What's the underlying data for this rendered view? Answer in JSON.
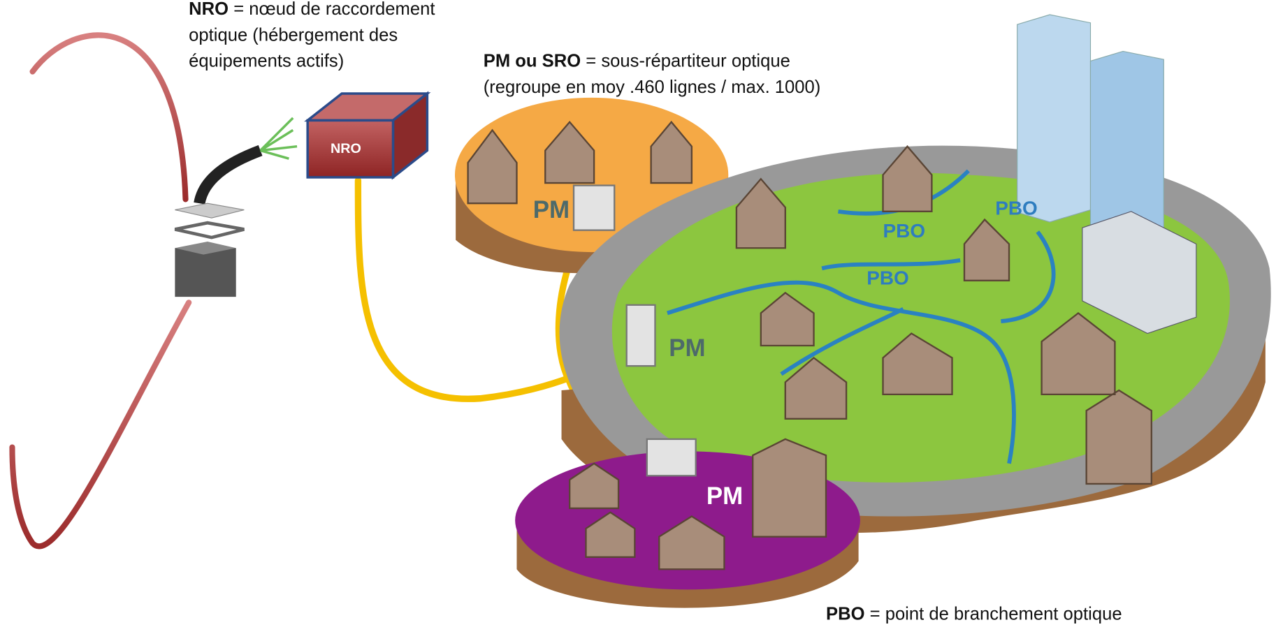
{
  "legend": {
    "nro": {
      "term": "NRO",
      "lines": [
        "= nœud de raccordement",
        "optique (hébergement des",
        "équipements actifs)"
      ]
    },
    "pm": {
      "term": "PM ou SRO",
      "lines": [
        "= sous-répartiteur optique",
        "(regroupe en moy .460 lignes / max. 1000)"
      ]
    },
    "pbo": {
      "term": "PBO",
      "lines": [
        "= point de branchement optique"
      ]
    }
  },
  "labels": {
    "nro_box": "NRO",
    "pm": [
      "PM",
      "PM",
      "PM"
    ],
    "pbo": [
      "PBO",
      "PBO",
      "PBO"
    ]
  }
}
